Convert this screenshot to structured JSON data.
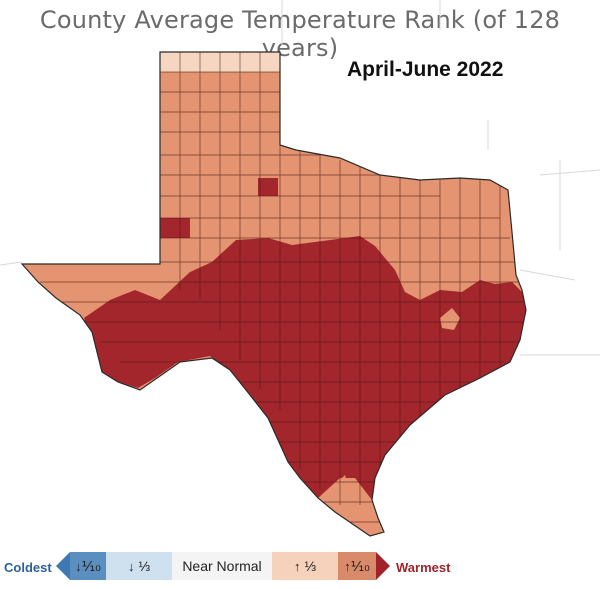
{
  "title": "County Average Temperature Rank (of 128 years)",
  "subtitle": "April-June 2022",
  "legend": {
    "coldest": "Coldest",
    "warmest": "Warmest",
    "cells": [
      {
        "arrow": "↓",
        "label": "⅒",
        "color": "#5b8fc0"
      },
      {
        "arrow": "↓",
        "label": "⅓",
        "color": "#cfe0ef"
      },
      {
        "arrow": "",
        "label": "Near Normal",
        "color": "#f4f4f4"
      },
      {
        "arrow": "↑",
        "label": "⅓",
        "color": "#f6d2bc"
      },
      {
        "arrow": "↑",
        "label": "⅒",
        "color": "#d98a6a"
      }
    ],
    "colors": {
      "coldest_text": "#2c5f9e",
      "warmest_text": "#a0232a",
      "cold_end": "#3f79b4",
      "warm_end": "#a0232a"
    }
  },
  "map": {
    "region": "Texas counties",
    "category_colors": {
      "warmest_top10": "#a4262d",
      "above_normal": "#e49470",
      "near_normal_light": "#f7d6c1"
    }
  }
}
